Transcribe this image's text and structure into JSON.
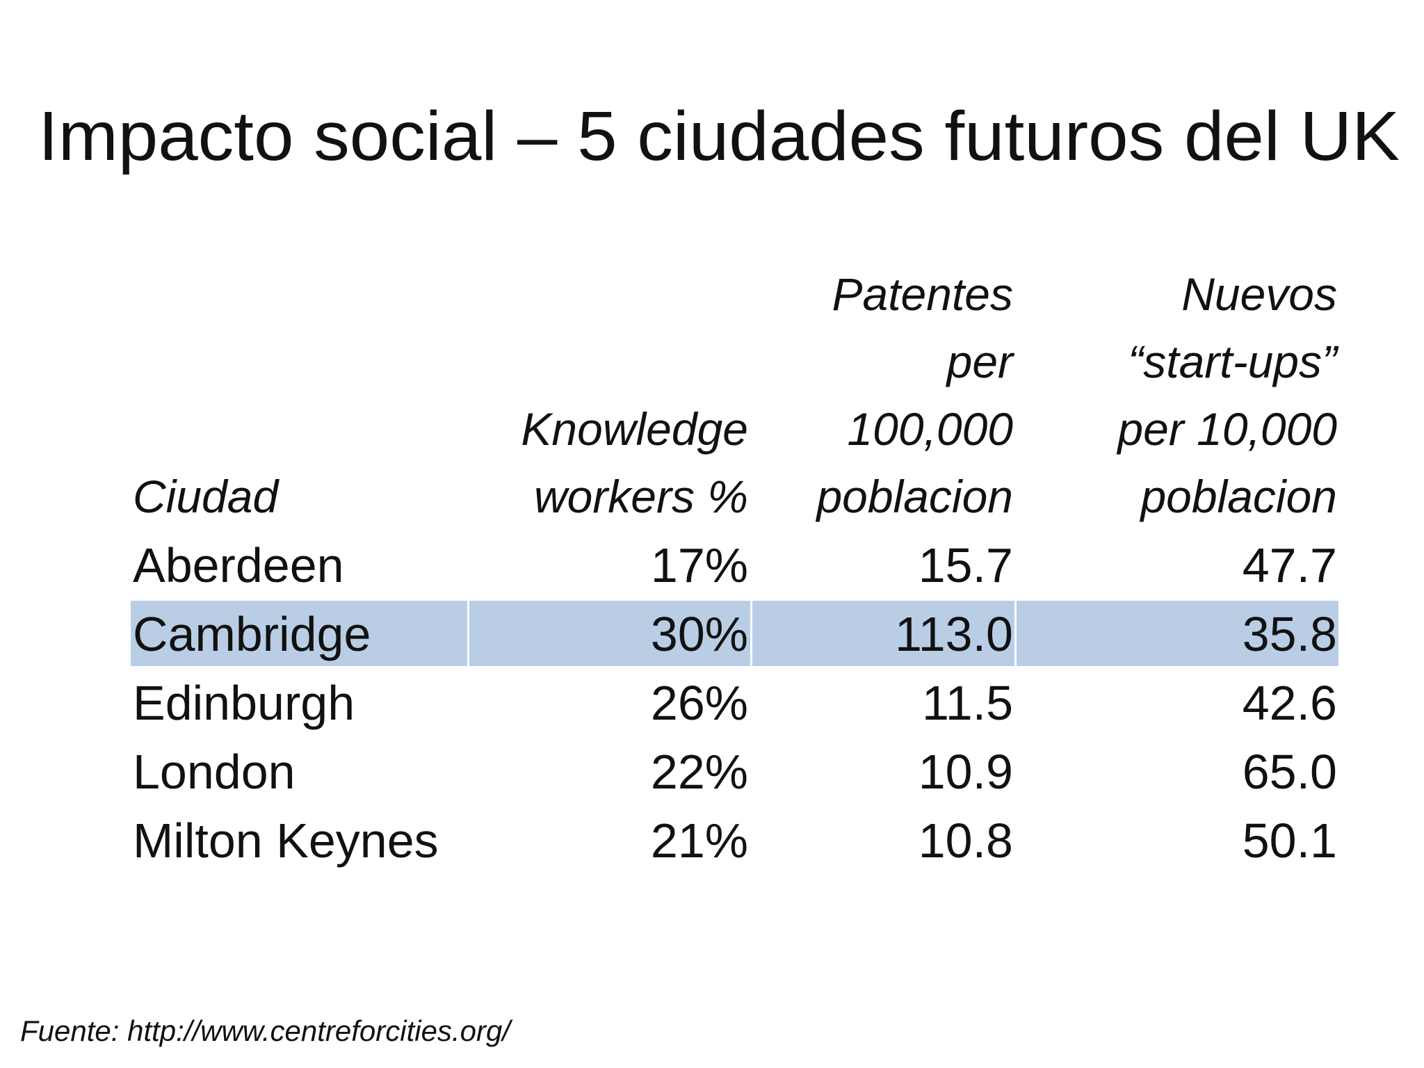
{
  "title": "Impacto social – 5 ciudades futuros del UK",
  "table": {
    "headers": [
      [
        "Ciudad"
      ],
      [
        "Knowledge",
        "workers %"
      ],
      [
        "Patentes",
        "per",
        "100,000",
        "poblacion"
      ],
      [
        "Nuevos",
        "“start-ups”",
        "per 10,000",
        "poblacion"
      ]
    ],
    "rows": [
      [
        "Aberdeen",
        "17%",
        "15.7",
        "47.7"
      ],
      [
        "Cambridge",
        "30%",
        "113.0",
        "35.8"
      ],
      [
        "Edinburgh",
        "26%",
        "11.5",
        "42.6"
      ],
      [
        "London",
        "22%",
        "10.9",
        "65.0"
      ],
      [
        "Milton Keynes",
        "21%",
        "10.8",
        "50.1"
      ]
    ],
    "highlight_row": 1,
    "highlight_color": "#b9cde5"
  },
  "footer": "Fuente:  http://www.centreforcities.org/"
}
